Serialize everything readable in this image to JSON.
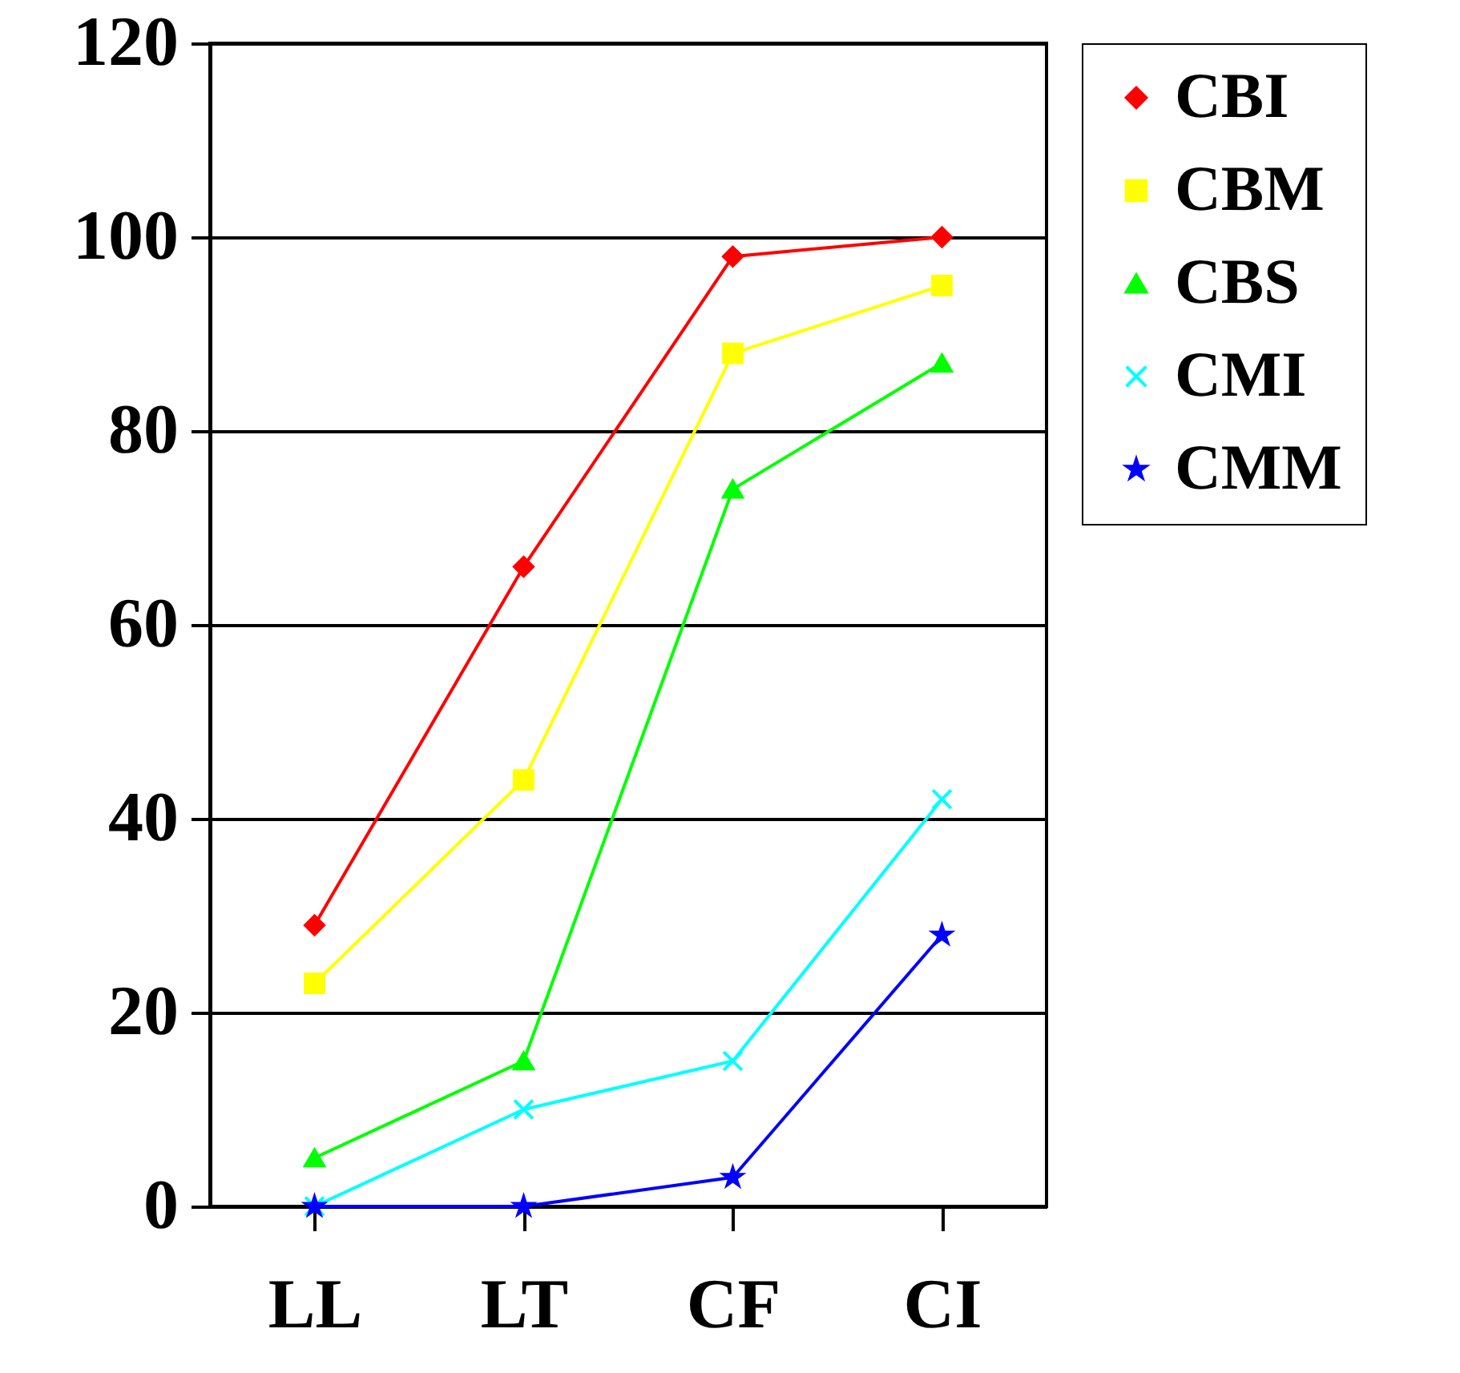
{
  "chart_data": {
    "type": "line",
    "categories": [
      "LL",
      "LT",
      "CF",
      "CI"
    ],
    "series": [
      {
        "name": "CBI",
        "color": "#ff0000",
        "marker": "diamond",
        "values": [
          29,
          66,
          98,
          100
        ]
      },
      {
        "name": "CBM",
        "color": "#ffff00",
        "marker": "square",
        "values": [
          23,
          44,
          88,
          95
        ]
      },
      {
        "name": "CBS",
        "color": "#00ff00",
        "marker": "triangle",
        "values": [
          5,
          15,
          74,
          87
        ]
      },
      {
        "name": "CMI",
        "color": "#00ffff",
        "marker": "cross",
        "values": [
          0,
          10,
          15,
          42
        ]
      },
      {
        "name": "CMM",
        "color": "#0000ff",
        "marker": "star",
        "values": [
          0,
          0,
          3,
          28
        ]
      }
    ],
    "ylim": [
      0,
      120
    ],
    "yticks": [
      0,
      20,
      40,
      60,
      80,
      100,
      120
    ],
    "grid": "y",
    "legend": "right",
    "line_style": "solid"
  }
}
